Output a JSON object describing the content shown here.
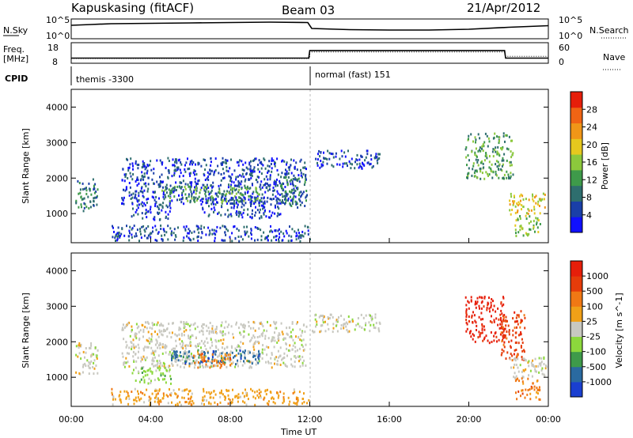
{
  "header": {
    "station": "Kapuskasing (fitACF)",
    "beam": "Beam 03",
    "date": "21/Apr/2012"
  },
  "top_panel": {
    "nsky_label": "N.Sky",
    "nsky_ticks": [
      "10^5",
      "10^0"
    ],
    "nsearch_label": "N.Search",
    "nsearch_ticks": [
      "10^5",
      "10^0"
    ],
    "freq_label_1": "Freq.",
    "freq_label_2": "[MHz]",
    "freq_ticks": [
      "18",
      "8"
    ],
    "nave_label": "Nave",
    "nave_ticks": [
      "60",
      "0"
    ],
    "cpid_label": "CPID",
    "cpid_segments": [
      {
        "text": "themis -3300",
        "start_h": 0,
        "end_h": 12
      },
      {
        "text": "normal (fast) 151",
        "start_h": 12,
        "end_h": 24
      }
    ],
    "noise_series": [
      {
        "h": 0.0,
        "v": 3.4
      },
      {
        "h": 1.0,
        "v": 3.6
      },
      {
        "h": 2.0,
        "v": 3.8
      },
      {
        "h": 4.0,
        "v": 3.9
      },
      {
        "h": 6.0,
        "v": 4.0
      },
      {
        "h": 8.0,
        "v": 4.1
      },
      {
        "h": 10.0,
        "v": 4.2
      },
      {
        "h": 11.9,
        "v": 4.1
      },
      {
        "h": 12.1,
        "v": 2.6
      },
      {
        "h": 14.0,
        "v": 2.3
      },
      {
        "h": 16.0,
        "v": 2.2
      },
      {
        "h": 18.0,
        "v": 2.2
      },
      {
        "h": 20.0,
        "v": 2.4
      },
      {
        "h": 22.0,
        "v": 2.9
      },
      {
        "h": 24.0,
        "v": 3.3
      }
    ],
    "freq_series": [
      {
        "h": 0.0,
        "v": 10.5
      },
      {
        "h": 11.95,
        "v": 10.5
      },
      {
        "h": 12.0,
        "v": 14.2
      },
      {
        "h": 21.8,
        "v": 14.2
      },
      {
        "h": 21.85,
        "v": 10.5
      },
      {
        "h": 24.0,
        "v": 10.5
      }
    ],
    "nave_series": [
      {
        "h": 0.0,
        "v": 14
      },
      {
        "h": 12.0,
        "v": 14
      },
      {
        "h": 12.0,
        "v": 33
      },
      {
        "h": 21.8,
        "v": 33
      },
      {
        "h": 21.85,
        "v": 20
      },
      {
        "h": 24.0,
        "v": 20
      }
    ]
  },
  "chart_data": [
    {
      "type": "heatmap",
      "title": "",
      "xlabel": "",
      "ylabel": "Slant Range [km]",
      "xlim": [
        0,
        24
      ],
      "ylim": [
        180,
        4500
      ],
      "yticks": [
        "1000",
        "2000",
        "3000",
        "4000"
      ],
      "colorbar": {
        "label": "Power [dB]",
        "ticks": [
          "4",
          "8",
          "12",
          "16",
          "20",
          "24",
          "28"
        ],
        "range": [
          0,
          30
        ],
        "colors": [
          "#1010ff",
          "#1a3fa8",
          "#2e6e6e",
          "#3e9a4a",
          "#8cc83c",
          "#e6c81e",
          "#f09618",
          "#f06414",
          "#e61e0a"
        ]
      },
      "regions": [
        {
          "x": [
            0.2,
            1.3
          ],
          "y": [
            1100,
            2000
          ],
          "level": 6
        },
        {
          "x": [
            2.5,
            11.8
          ],
          "y": [
            1300,
            2600
          ],
          "level": 4
        },
        {
          "x": [
            4.5,
            9.5
          ],
          "y": [
            1350,
            1800
          ],
          "level": 12
        },
        {
          "x": [
            3.0,
            5.0
          ],
          "y": [
            850,
            1300
          ],
          "level": 5
        },
        {
          "x": [
            6.5,
            10.5
          ],
          "y": [
            900,
            1500
          ],
          "level": 4
        },
        {
          "x": [
            10.5,
            11.9
          ],
          "y": [
            1200,
            2100
          ],
          "level": 7
        },
        {
          "x": [
            12.1,
            15.5
          ],
          "y": [
            2300,
            2800
          ],
          "level": 4
        },
        {
          "x": [
            19.8,
            22.2
          ],
          "y": [
            2000,
            3300
          ],
          "level": 10
        },
        {
          "x": [
            22.0,
            23.8
          ],
          "y": [
            1000,
            1600
          ],
          "level": 18
        },
        {
          "x": [
            22.3,
            23.6
          ],
          "y": [
            400,
            1000
          ],
          "level": 14
        },
        {
          "x": [
            2.0,
            12.0
          ],
          "y": [
            250,
            700
          ],
          "level": 3
        }
      ]
    },
    {
      "type": "heatmap",
      "title": "",
      "xlabel": "Time UT",
      "ylabel": "Slant Range [km]",
      "xlim": [
        0,
        24
      ],
      "ylim": [
        180,
        4500
      ],
      "xticks": [
        "00:00",
        "04:00",
        "08:00",
        "12:00",
        "16:00",
        "20:00",
        "00:00"
      ],
      "yticks": [
        "1000",
        "2000",
        "3000",
        "4000"
      ],
      "colorbar": {
        "label": "Velocity [m s^-1]",
        "ticks": [
          "1000",
          "500",
          "100",
          "25",
          "-25",
          "-100",
          "-500",
          "-1000"
        ],
        "colors": [
          "#1a3fd0",
          "#2a6aa0",
          "#3e9a4a",
          "#8cd83c",
          "#c8c8c0",
          "#f0a018",
          "#f07814",
          "#e63c0a",
          "#e61e0a"
        ]
      },
      "regions": [
        {
          "x": [
            0.2,
            1.3
          ],
          "y": [
            1100,
            2000
          ],
          "level": 4
        },
        {
          "x": [
            2.5,
            11.8
          ],
          "y": [
            1300,
            2600
          ],
          "level": 4
        },
        {
          "x": [
            3.0,
            5.0
          ],
          "y": [
            850,
            1300
          ],
          "level": 3
        },
        {
          "x": [
            5.0,
            9.5
          ],
          "y": [
            1400,
            1800
          ],
          "level": 1
        },
        {
          "x": [
            6.0,
            8.0
          ],
          "y": [
            1300,
            1700
          ],
          "level": 6
        },
        {
          "x": [
            12.1,
            15.5
          ],
          "y": [
            2300,
            2800
          ],
          "level": 4
        },
        {
          "x": [
            19.8,
            21.8
          ],
          "y": [
            2000,
            3300
          ],
          "level": 8
        },
        {
          "x": [
            21.6,
            22.8
          ],
          "y": [
            1500,
            2900
          ],
          "level": 7
        },
        {
          "x": [
            22.0,
            23.9
          ],
          "y": [
            1000,
            1600
          ],
          "level": 4
        },
        {
          "x": [
            22.3,
            23.6
          ],
          "y": [
            400,
            1000
          ],
          "level": 6
        },
        {
          "x": [
            2.0,
            12.0
          ],
          "y": [
            250,
            700
          ],
          "level": 5
        }
      ]
    }
  ]
}
